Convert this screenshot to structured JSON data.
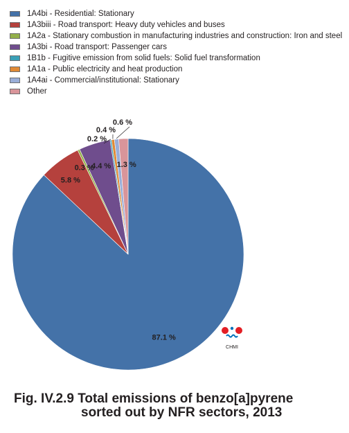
{
  "chart_data": {
    "type": "pie",
    "title": "",
    "legend_position": "top-left",
    "series": [
      {
        "name": "1A4bi - Residential: Stationary",
        "value": 87.1,
        "label": "87.1 %",
        "color": "#4472a8"
      },
      {
        "name": "1A3biii - Road transport: Heavy duty vehicles and buses",
        "value": 5.8,
        "label": "5.8 %",
        "color": "#b5413d"
      },
      {
        "name": "1A2a - Stationary combustion in manufacturing industries and construction: Iron and steel",
        "value": 0.3,
        "label": "0.3 %",
        "color": "#93b04a"
      },
      {
        "name": "1A3bi - Road transport: Passenger cars",
        "value": 4.4,
        "label": "4.4 %",
        "color": "#6f4d8d"
      },
      {
        "name": "1B1b - Fugitive emission from solid fuels: Solid fuel transformation",
        "value": 0.2,
        "label": "0.2 %",
        "color": "#3aa0b7"
      },
      {
        "name": "1A1a - Public electricity and heat production",
        "value": 0.4,
        "label": "0.4 %",
        "color": "#e08a35"
      },
      {
        "name": "1A4ai - Commercial/institutional: Stationary",
        "value": 0.6,
        "label": "0.6 %",
        "color": "#9aaed8"
      },
      {
        "name": "Other",
        "value": 1.3,
        "label": "1.3 %",
        "color": "#d9959a"
      }
    ]
  },
  "logo": {
    "text": "CHMI"
  },
  "caption": {
    "line1": "Fig. IV.2.9  Total emissions of benzo[a]pyrene",
    "line2": "sorted out by NFR sectors, 2013"
  }
}
